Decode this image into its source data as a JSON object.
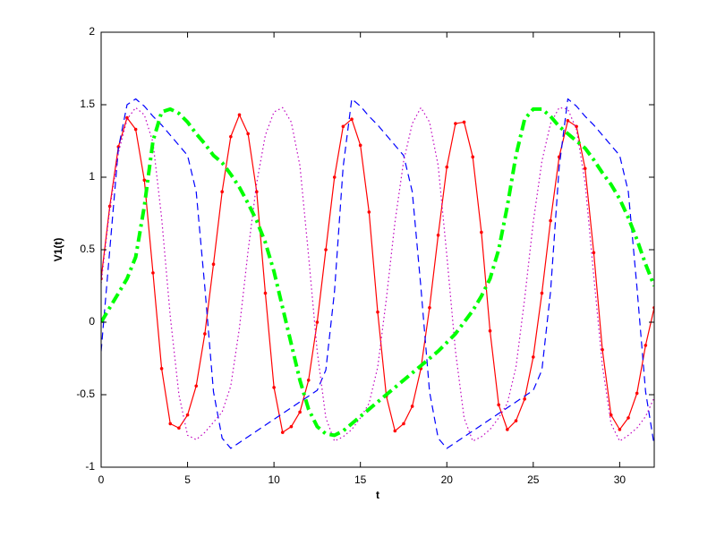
{
  "chart_data": {
    "type": "line",
    "xlabel": "t",
    "ylabel": "V1(t)",
    "x": [
      0,
      0.5,
      1,
      1.5,
      2,
      2.5,
      3,
      3.5,
      4,
      4.5,
      5,
      5.5,
      6,
      6.5,
      7,
      7.5,
      8,
      8.5,
      9,
      9.5,
      10,
      10.5,
      11,
      11.5,
      12,
      12.5,
      13,
      13.5,
      14,
      14.5,
      15,
      15.5,
      16,
      16.5,
      17,
      17.5,
      18,
      18.5,
      19,
      19.5,
      20,
      20.5,
      21,
      21.5,
      22,
      22.5,
      23,
      23.5,
      24,
      24.5,
      25,
      25.5,
      26,
      26.5,
      27,
      27.5,
      28,
      28.5,
      29,
      29.5,
      30,
      30.5,
      31,
      31.5,
      32
    ],
    "series": [
      {
        "color": "#ff0000",
        "linestyle": "solid",
        "marker": "dot",
        "values": [
          0.3,
          0.8,
          1.21,
          1.41,
          1.33,
          0.98,
          0.34,
          -0.32,
          -0.7,
          -0.73,
          -0.64,
          -0.44,
          -0.08,
          0.4,
          0.9,
          1.28,
          1.43,
          1.3,
          0.9,
          0.2,
          -0.45,
          -0.76,
          -0.72,
          -0.62,
          -0.4,
          0,
          0.5,
          1.0,
          1.35,
          1.4,
          1.22,
          0.76,
          0.07,
          -0.51,
          -0.75,
          -0.7,
          -0.58,
          -0.32,
          0.1,
          0.6,
          1.07,
          1.37,
          1.38,
          1.14,
          0.62,
          -0.06,
          -0.57,
          -0.74,
          -0.68,
          -0.53,
          -0.24,
          0.2,
          0.7,
          1.14,
          1.39,
          1.35,
          1.06,
          0.48,
          -0.19,
          -0.64,
          -0.74,
          -0.66,
          -0.49,
          -0.16,
          0.1
        ]
      },
      {
        "color": "#0000ff",
        "linestyle": "dashed",
        "values": [
          -0.2,
          0.5,
          1.2,
          1.5,
          1.54,
          1.49,
          1.42,
          1.36,
          1.29,
          1.22,
          1.15,
          0.9,
          0.24,
          -0.48,
          -0.8,
          -0.87,
          -0.83,
          -0.79,
          -0.75,
          -0.71,
          -0.67,
          -0.63,
          -0.59,
          -0.55,
          -0.51,
          -0.47,
          -0.33,
          0.21,
          1.07,
          1.54,
          1.49,
          1.42,
          1.36,
          1.29,
          1.22,
          1.15,
          0.9,
          0.24,
          -0.48,
          -0.8,
          -0.87,
          -0.83,
          -0.79,
          -0.75,
          -0.71,
          -0.67,
          -0.63,
          -0.59,
          -0.55,
          -0.51,
          -0.47,
          -0.33,
          0.21,
          1.07,
          1.54,
          1.49,
          1.42,
          1.36,
          1.29,
          1.22,
          1.15,
          0.9,
          0.24,
          -0.48,
          -0.85
        ]
      },
      {
        "color": "#bf00bf",
        "linestyle": "dotted",
        "values": [
          0.27,
          0.78,
          1.17,
          1.4,
          1.48,
          1.43,
          1.24,
          0.72,
          0.04,
          -0.5,
          -0.78,
          -0.81,
          -0.76,
          -0.69,
          -0.62,
          -0.44,
          -0.04,
          0.49,
          0.96,
          1.29,
          1.45,
          1.48,
          1.38,
          1.08,
          0.46,
          -0.2,
          -0.66,
          -0.82,
          -0.79,
          -0.74,
          -0.66,
          -0.56,
          -0.31,
          0.16,
          0.69,
          1.11,
          1.37,
          1.48,
          1.38,
          1.08,
          0.46,
          -0.2,
          -0.66,
          -0.82,
          -0.79,
          -0.74,
          -0.66,
          -0.56,
          -0.31,
          0.16,
          0.69,
          1.11,
          1.37,
          1.48,
          1.47,
          1.33,
          0.96,
          0.32,
          -0.3,
          -0.7,
          -0.82,
          -0.78,
          -0.73,
          -0.65,
          -0.52
        ]
      },
      {
        "color": "#00ff00",
        "linestyle": "dashdot",
        "linewidth": 4,
        "values": [
          0,
          0.1,
          0.2,
          0.3,
          0.45,
          0.8,
          1.25,
          1.45,
          1.47,
          1.44,
          1.38,
          1.3,
          1.23,
          1.15,
          1.1,
          1.02,
          0.93,
          0.82,
          0.7,
          0.55,
          0.35,
          0.1,
          -0.15,
          -0.4,
          -0.6,
          -0.72,
          -0.77,
          -0.78,
          -0.75,
          -0.7,
          -0.65,
          -0.6,
          -0.55,
          -0.5,
          -0.45,
          -0.4,
          -0.35,
          -0.3,
          -0.25,
          -0.2,
          -0.14,
          -0.08,
          0,
          0.08,
          0.18,
          0.3,
          0.5,
          0.8,
          1.15,
          1.4,
          1.47,
          1.47,
          1.42,
          1.35,
          1.3,
          1.25,
          1.2,
          1.12,
          1.03,
          0.95,
          0.85,
          0.72,
          0.57,
          0.4,
          0.25
        ]
      }
    ],
    "xlim": [
      0,
      32
    ],
    "xticks": [
      0,
      5,
      10,
      15,
      20,
      25,
      30
    ],
    "ylim": [
      -1,
      2
    ],
    "yticks": [
      -1,
      -0.5,
      0,
      0.5,
      1,
      1.5,
      2
    ],
    "grid": false
  }
}
